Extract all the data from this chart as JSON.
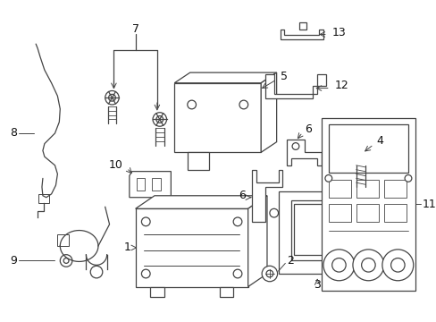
{
  "fig_width": 4.89,
  "fig_height": 3.6,
  "dpi": 100,
  "background_color": "#ffffff",
  "line_color": "#444444",
  "label_color": "#111111",
  "lw": 0.9
}
